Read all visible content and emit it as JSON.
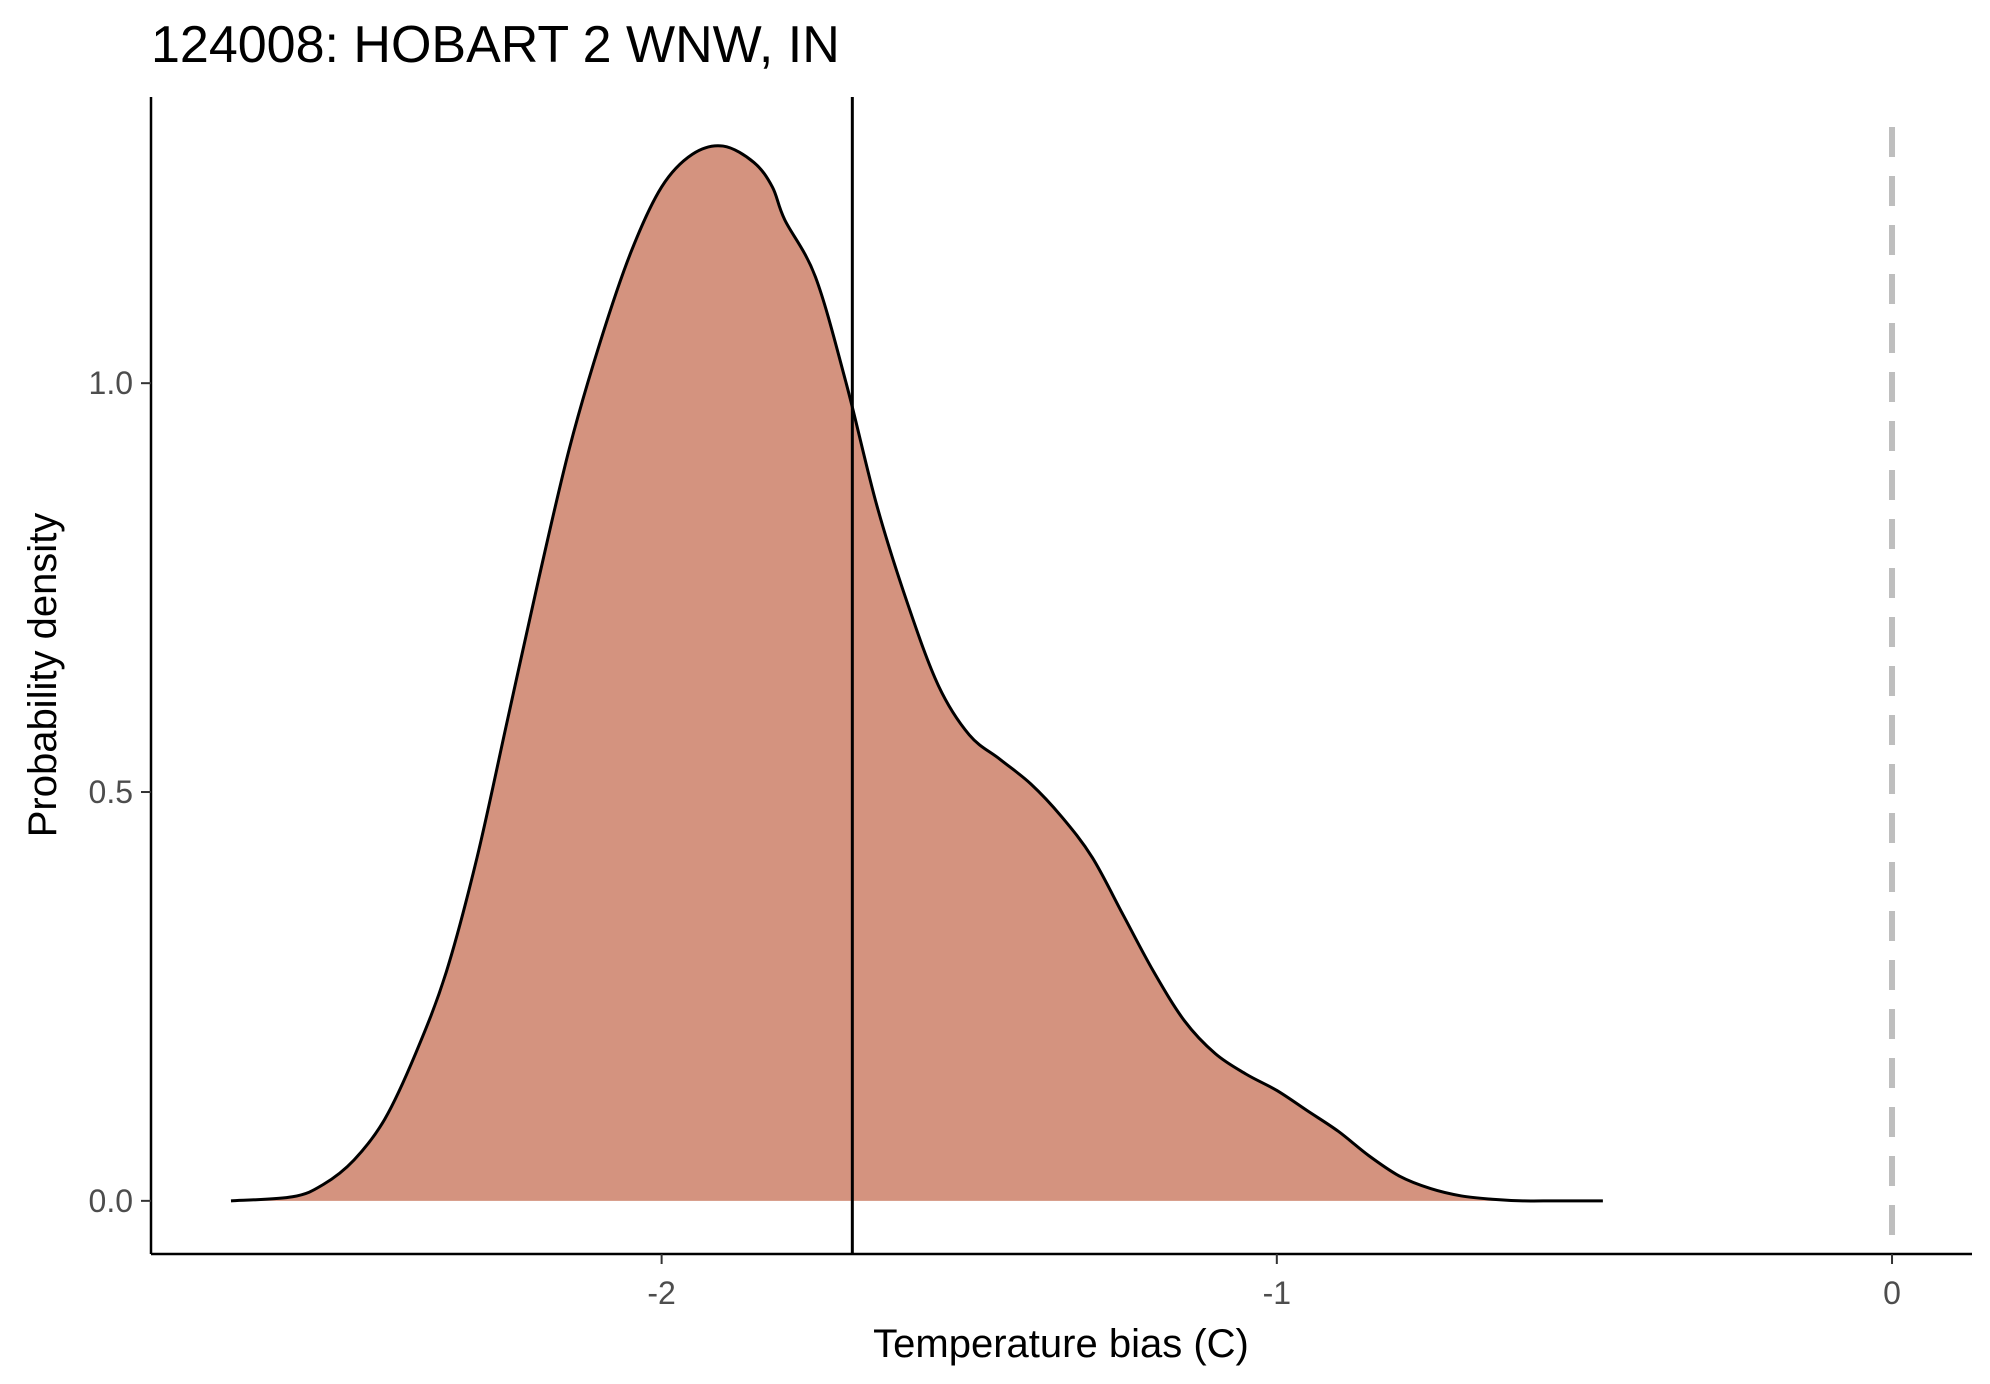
{
  "chart_data": {
    "type": "area",
    "title": "124008: HOBART 2 WNW, IN",
    "xlabel": "Temperature bias (C)",
    "ylabel": "Probability density",
    "xlim": [
      -2.83,
      0.13
    ],
    "ylim": [
      -0.065,
      1.35
    ],
    "x_ticks": [
      {
        "value": -2,
        "label": "-2"
      },
      {
        "value": -1,
        "label": "-1"
      },
      {
        "value": 0,
        "label": "0"
      }
    ],
    "y_ticks": [
      {
        "value": 0.0,
        "label": "0.0"
      },
      {
        "value": 0.5,
        "label": "0.5"
      },
      {
        "value": 1.0,
        "label": "1.0"
      }
    ],
    "grid": false,
    "legend": "none",
    "fill_color": "#d4937f",
    "line_color": "#000000",
    "series": [
      {
        "x": [
          -2.7,
          -2.6,
          -2.55,
          -2.5,
          -2.45,
          -2.4,
          -2.35,
          -2.3,
          -2.25,
          -2.2,
          -2.15,
          -2.1,
          -2.05,
          -2.0,
          -1.95,
          -1.9,
          -1.85,
          -1.82,
          -1.8,
          -1.75,
          -1.7,
          -1.65,
          -1.6,
          -1.55,
          -1.5,
          -1.45,
          -1.4,
          -1.35,
          -1.3,
          -1.25,
          -1.2,
          -1.15,
          -1.1,
          -1.05,
          -1.0,
          -0.95,
          -0.9,
          -0.85,
          -0.8,
          -0.75,
          -0.7,
          -0.65,
          -0.6,
          -0.55,
          -0.5,
          -0.47
        ],
        "y": [
          0.0,
          0.005,
          0.02,
          0.05,
          0.1,
          0.18,
          0.28,
          0.42,
          0.59,
          0.76,
          0.92,
          1.05,
          1.16,
          1.24,
          1.28,
          1.29,
          1.27,
          1.24,
          1.2,
          1.13,
          1.0,
          0.85,
          0.73,
          0.63,
          0.57,
          0.54,
          0.51,
          0.47,
          0.42,
          0.35,
          0.28,
          0.22,
          0.18,
          0.155,
          0.135,
          0.11,
          0.085,
          0.055,
          0.03,
          0.015,
          0.006,
          0.002,
          0.0,
          0.0,
          0.0,
          0.0
        ]
      }
    ],
    "reference_lines": [
      {
        "axis": "x",
        "value": -1.69,
        "style": "solid",
        "color": "#000000"
      },
      {
        "axis": "x",
        "value": 0,
        "style": "dashed",
        "color": "#bebebe"
      }
    ]
  }
}
